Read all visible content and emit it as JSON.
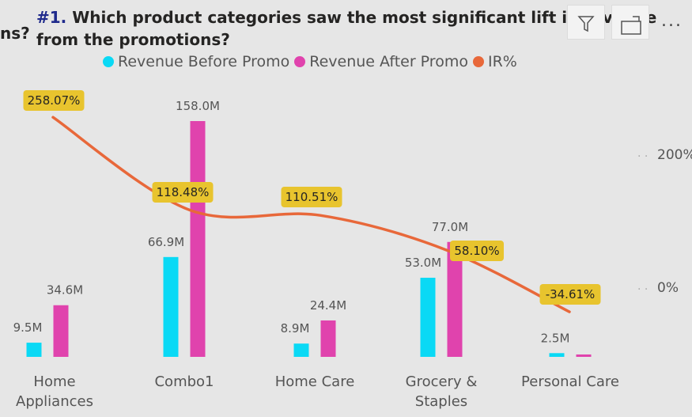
{
  "header": {
    "behind_text": "ns?",
    "title_number": "#1.",
    "title_text": "Which product categories saw the most significant lift in revenue from the promotions?"
  },
  "toolbar": {
    "filter_icon": "filter-icon",
    "focus_icon": "focus-mode-icon",
    "more_label": "..."
  },
  "colors": {
    "before": "#0ad9f5",
    "after": "#e043ad",
    "ir": "#e8683a",
    "label_bg": "#e8c42e"
  },
  "chart_data": {
    "type": "bar",
    "categories": [
      "Home Appliances",
      "Combo1",
      "Home Care",
      "Grocery & Staples",
      "Personal Care"
    ],
    "category_lines": [
      [
        "Home",
        "Appliances"
      ],
      [
        "Combo1"
      ],
      [
        "Home Care"
      ],
      [
        "Grocery &",
        "Staples"
      ],
      [
        "Personal Care"
      ]
    ],
    "series": [
      {
        "name": "Revenue Before Promo",
        "values": [
          9.5,
          66.9,
          8.9,
          53.0,
          2.5
        ],
        "labels": [
          "9.5M",
          "66.9M",
          "8.9M",
          "53.0M",
          "2.5M"
        ]
      },
      {
        "name": "Revenue After Promo",
        "values": [
          34.6,
          158.0,
          24.4,
          77.0,
          1.6
        ],
        "labels": [
          "34.6M",
          "158.0M",
          "24.4M",
          "77.0M",
          ""
        ]
      },
      {
        "name": "IR%",
        "type": "line",
        "values": [
          258.07,
          118.48,
          110.51,
          58.1,
          -34.61
        ],
        "labels": [
          "258.07%",
          "118.48%",
          "110.51%",
          "58.10%",
          "-34.61%"
        ]
      }
    ],
    "secondary_axis": {
      "ticks": [
        0,
        200
      ],
      "tick_labels": [
        "0%",
        "200%"
      ]
    },
    "xlabel": "",
    "ylabel": ""
  }
}
